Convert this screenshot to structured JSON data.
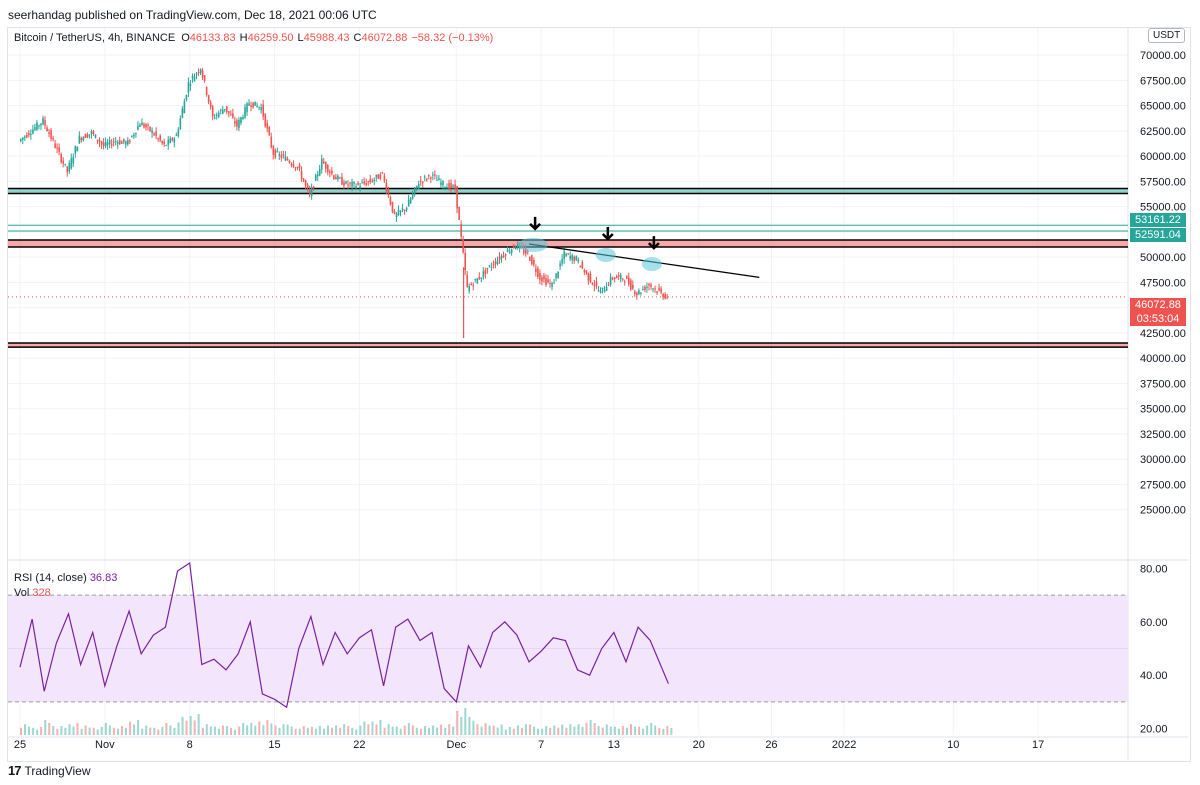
{
  "header": {
    "published": "seerhandag published on TradingView.com, Dec 18, 2021 00:06 UTC"
  },
  "legend": {
    "symbol": "Bitcoin / TetherUS, 4h, BINANCE",
    "open_label": "O",
    "open": "46133.83",
    "high_label": "H",
    "high": "46259.50",
    "low_label": "L",
    "low": "45988.43",
    "close_label": "C",
    "close": "46072.88",
    "change": "−58.32 (−0.13%)"
  },
  "currency_button": "USDT",
  "price_tags": {
    "green1": "53161.22",
    "green2": "52591.04",
    "last": "46072.88",
    "countdown": "03:53:04"
  },
  "rsi_legend": {
    "label": "RSI (14, close)",
    "value": "36.83"
  },
  "vol_legend": {
    "label": "Vol",
    "value": "328"
  },
  "footer": {
    "brand": "TradingView"
  },
  "colors": {
    "up": "#26a69a",
    "down": "#ef5350",
    "rsi_line": "#7b1fa2",
    "rsi_band": "#f3e5fc",
    "support_red": "#ef5350",
    "support_teal": "#26a69a",
    "highlight": "#5bc8d9"
  },
  "chart_data": [
    {
      "type": "candlestick",
      "title": "Bitcoin / TetherUS, 4h, BINANCE",
      "ylim": [
        22500,
        71000
      ],
      "y_ticks": [
        "70000.00",
        "67500.00",
        "65000.00",
        "62500.00",
        "60000.00",
        "57500.00",
        "55000.00",
        "52500.00",
        "50000.00",
        "47500.00",
        "45000.00",
        "42500.00",
        "40000.00",
        "37500.00",
        "35000.00",
        "32500.00",
        "30000.00",
        "27500.00",
        "25000.00"
      ],
      "y_tick_values": [
        70000,
        67500,
        65000,
        62500,
        60000,
        57500,
        55000,
        52500,
        50000,
        47500,
        45000,
        42500,
        40000,
        37500,
        35000,
        32500,
        30000,
        27500,
        25000
      ],
      "x_ticks": [
        "25",
        "Nov",
        "8",
        "15",
        "22",
        "Dec",
        "7",
        "13",
        "20",
        "26",
        "2022",
        "10",
        "17"
      ],
      "x_tick_days": [
        0,
        7,
        14,
        21,
        28,
        36,
        43,
        49,
        56,
        62,
        68,
        77,
        84
      ],
      "price_path_days": [
        0,
        2,
        3,
        4,
        5,
        6,
        7,
        8,
        9,
        10,
        11,
        12,
        13,
        14,
        15,
        16,
        17,
        18,
        19,
        20,
        21,
        22,
        23,
        24,
        25,
        26,
        27,
        28,
        29,
        30,
        31,
        32,
        33,
        34,
        35,
        36,
        37,
        38,
        39,
        40,
        41,
        42,
        43,
        44,
        45,
        46,
        47,
        48,
        49,
        50,
        51,
        52,
        53,
        53.5
      ],
      "price_path": [
        61500,
        63500,
        61000,
        58500,
        61800,
        62300,
        61000,
        61500,
        61300,
        63300,
        62400,
        61000,
        62000,
        67200,
        68800,
        63800,
        64800,
        63000,
        65300,
        64800,
        60300,
        59800,
        58900,
        56100,
        59500,
        58000,
        57200,
        57100,
        57500,
        58200,
        54000,
        55000,
        57400,
        58100,
        57200,
        56800,
        46900,
        48000,
        49200,
        50300,
        51200,
        50300,
        48000,
        47200,
        50300,
        49800,
        48000,
        46500,
        48000,
        47900,
        46400,
        47300,
        46400,
        46072.88
      ],
      "levels": [
        {
          "kind": "zone",
          "from": 56300,
          "to": 56800
        },
        {
          "kind": "line",
          "value": 53161.22
        },
        {
          "kind": "line",
          "value": 52591.04
        },
        {
          "kind": "zone",
          "from": 51000,
          "to": 51700
        },
        {
          "kind": "zone",
          "from": 41100,
          "to": 41500
        }
      ],
      "trendline": {
        "from": [
          42,
          51300
        ],
        "to": [
          61,
          48000
        ]
      },
      "annotations": [
        {
          "kind": "arrow-down",
          "day": 42.5,
          "price": 52800
        },
        {
          "kind": "arrow-down",
          "day": 48.5,
          "price": 51800
        },
        {
          "kind": "arrow-down",
          "day": 52.3,
          "price": 50900
        }
      ],
      "last_price": 46072.88
    },
    {
      "type": "line",
      "title": "RSI (14, close)",
      "ylim": [
        15,
        85
      ],
      "y_ticks": [
        "80.00",
        "60.00",
        "40.00",
        "20.00"
      ],
      "y_tick_values": [
        80,
        60,
        40,
        20
      ],
      "band": [
        30,
        70
      ],
      "x_days": [
        0,
        1,
        2,
        3,
        4,
        5,
        6,
        7,
        8,
        9,
        10,
        11,
        12,
        13,
        14,
        15,
        16,
        17,
        18,
        19,
        20,
        21,
        22,
        23,
        24,
        25,
        26,
        27,
        28,
        29,
        30,
        31,
        32,
        33,
        34,
        35,
        36,
        37,
        38,
        39,
        40,
        41,
        42,
        43,
        44,
        45,
        46,
        47,
        48,
        49,
        50,
        51,
        52,
        53.5
      ],
      "values": [
        43,
        61,
        34,
        52,
        63,
        44,
        56,
        36,
        51,
        64,
        48,
        55,
        58,
        79,
        82,
        44,
        46,
        42,
        48,
        60,
        33,
        31,
        28,
        50,
        62,
        44,
        56,
        48,
        54,
        57,
        36,
        58,
        61,
        53,
        56,
        35,
        30,
        51,
        43,
        56,
        60,
        55,
        45,
        49,
        54,
        53,
        42,
        40,
        50,
        56,
        45,
        58,
        53,
        36.83
      ],
      "volume_days": [
        0,
        1,
        2,
        3,
        4,
        5,
        6,
        7,
        8,
        9,
        10,
        11,
        12,
        13,
        14,
        15,
        16,
        17,
        18,
        19,
        20,
        21,
        22,
        23,
        24,
        25,
        26,
        27,
        28,
        29,
        30,
        31,
        32,
        33,
        34,
        35,
        36,
        37,
        38,
        39,
        40,
        41,
        42,
        43,
        44,
        45,
        46,
        47,
        48,
        49,
        50,
        51,
        52,
        53
      ],
      "volume_levels": [
        0.4,
        0.3,
        0.5,
        0.3,
        0.4,
        0.35,
        0.3,
        0.4,
        0.3,
        0.5,
        0.35,
        0.3,
        0.4,
        0.6,
        0.7,
        0.4,
        0.35,
        0.3,
        0.4,
        0.45,
        0.55,
        0.4,
        0.35,
        0.3,
        0.3,
        0.35,
        0.4,
        0.3,
        0.45,
        0.5,
        0.4,
        0.35,
        0.4,
        0.3,
        0.35,
        0.4,
        1.0,
        0.6,
        0.4,
        0.35,
        0.3,
        0.4,
        0.35,
        0.3,
        0.35,
        0.4,
        0.45,
        0.5,
        0.35,
        0.3,
        0.4,
        0.35,
        0.4,
        0.3
      ]
    }
  ]
}
